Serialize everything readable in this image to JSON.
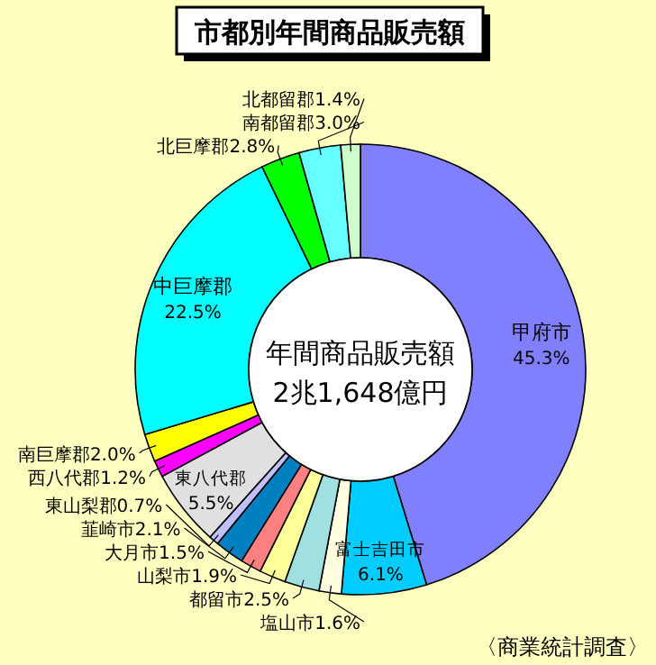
{
  "chart_data": {
    "type": "donut",
    "title": "市都別年間商品販売額",
    "categories": [
      "甲府市",
      "富士吉田市",
      "塩山市",
      "都留市",
      "山梨市",
      "大月市",
      "韮崎市",
      "東山梨郡",
      "東八代郡",
      "西八代郡",
      "南巨摩郡",
      "中巨摩郡",
      "北巨摩郡",
      "南都留郡",
      "北都留郡"
    ],
    "values": [
      45.3,
      6.1,
      1.6,
      2.5,
      1.9,
      1.5,
      2.1,
      0.7,
      5.5,
      1.2,
      2.0,
      22.5,
      2.8,
      3.0,
      1.4
    ],
    "value_labels": [
      "45.3%",
      "6.1%",
      "1.6%",
      "2.5%",
      "1.9%",
      "1.5%",
      "2.1%",
      "0.7%",
      "5.5%",
      "1.2%",
      "2.0%",
      "22.5%",
      "2.8%",
      "3.0%",
      "1.4%"
    ],
    "colors": [
      "#8080ff",
      "#00ccff",
      "#ffffe0",
      "#a0e0e0",
      "#ffff99",
      "#ff8080",
      "#0080c0",
      "#c0c0ff",
      "#e0e0e0",
      "#ff00ff",
      "#ffff00",
      "#00ffff",
      "#00ff00",
      "#66ffff",
      "#ccffcc"
    ],
    "annotations": [
      "年間商品販売額",
      "2兆1,648億円",
      "〈商業統計調査〉"
    ]
  }
}
